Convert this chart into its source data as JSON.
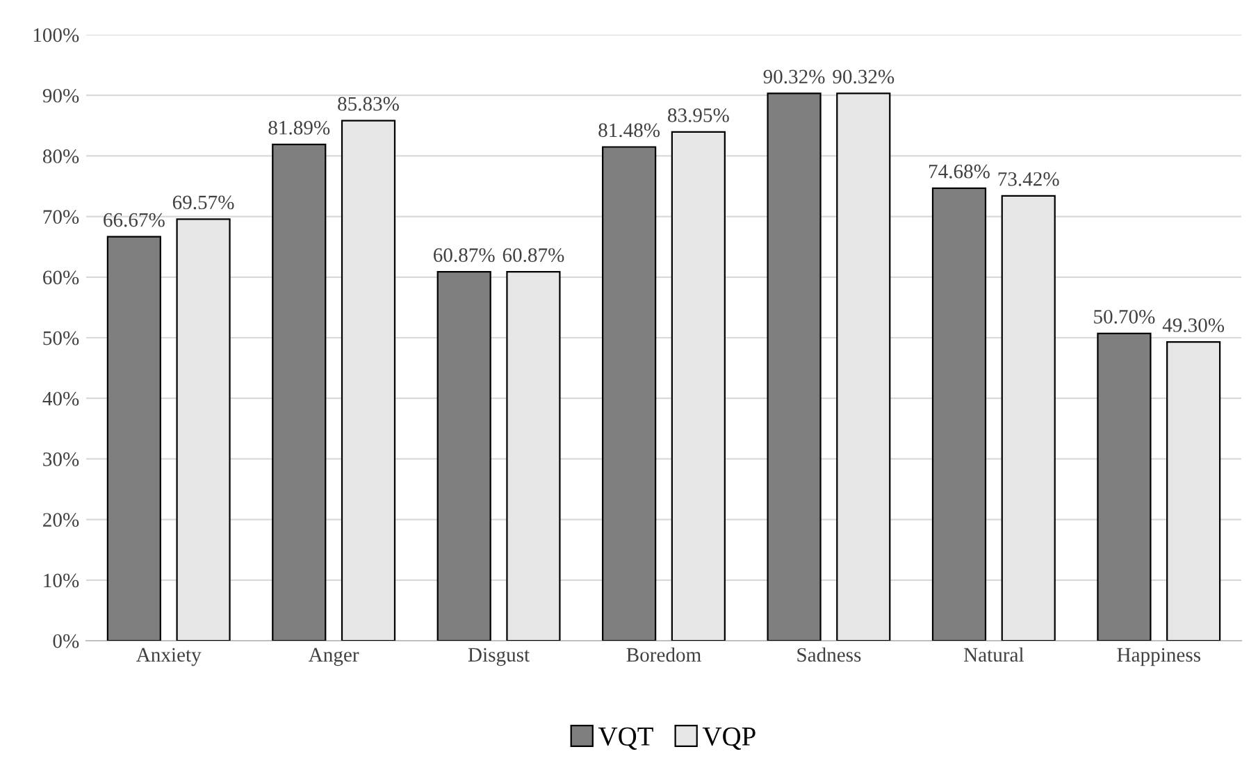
{
  "chart_data": {
    "type": "bar",
    "categories": [
      "Anxiety",
      "Anger",
      "Disgust",
      "Boredom",
      "Sadness",
      "Natural",
      "Happiness"
    ],
    "series": [
      {
        "name": "VQT",
        "color": "#7f7f7f",
        "values": [
          66.67,
          81.89,
          60.87,
          81.48,
          90.32,
          74.68,
          50.7
        ],
        "value_labels": [
          "66.67%",
          "81.89%",
          "60.87%",
          "81.48%",
          "90.32%",
          "74.68%",
          "50.70%"
        ]
      },
      {
        "name": "VQP",
        "color": "#e7e6e6",
        "values": [
          69.57,
          85.83,
          60.87,
          83.95,
          90.32,
          73.42,
          49.3
        ],
        "value_labels": [
          "69.57%",
          "85.83%",
          "60.87%",
          "83.95%",
          "90.32%",
          "73.42%",
          "49.30%"
        ]
      }
    ],
    "ylim": [
      0,
      100
    ],
    "yticks": [
      {
        "value": 0,
        "label": "0%"
      },
      {
        "value": 10,
        "label": "10%"
      },
      {
        "value": 20,
        "label": "20%"
      },
      {
        "value": 30,
        "label": "30%"
      },
      {
        "value": 40,
        "label": "40%"
      },
      {
        "value": 50,
        "label": "50%"
      },
      {
        "value": 60,
        "label": "60%"
      },
      {
        "value": 70,
        "label": "70%"
      },
      {
        "value": 80,
        "label": "80%"
      },
      {
        "value": 90,
        "label": "90%"
      },
      {
        "value": 100,
        "label": "100%"
      }
    ],
    "grid": "y",
    "legend": "bottom"
  }
}
